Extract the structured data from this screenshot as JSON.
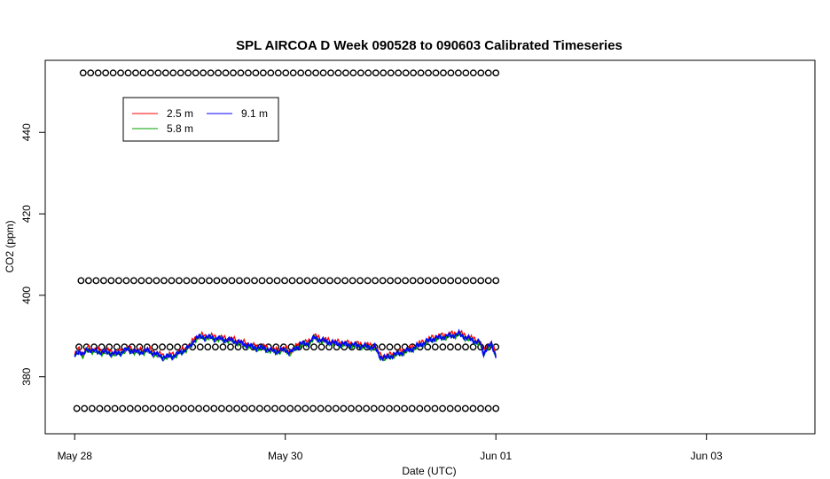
{
  "chart_data": {
    "type": "line",
    "title": "SPL AIRCOA D  Week 090528 to 090603  Calibrated Timeseries",
    "xlabel": "Date (UTC)",
    "ylabel": "CO2 (ppm)",
    "x_ticks": [
      {
        "day": 0,
        "label": "May 28"
      },
      {
        "day": 2,
        "label": "May 30"
      },
      {
        "day": 4,
        "label": "Jun 01"
      },
      {
        "day": 6,
        "label": "Jun 03"
      }
    ],
    "y_ticks": [
      380,
      400,
      420,
      440
    ],
    "xlim_days_from_May28": [
      -0.28,
      7.03
    ],
    "ylim": [
      366.0,
      457.7
    ],
    "grid": false,
    "legend_position": "top-left",
    "legend": [
      "2.5 m",
      "9.1 m",
      "5.8 m"
    ],
    "series": [
      {
        "name": "2.5 m",
        "color": "#ff0000",
        "offset": 0.35
      },
      {
        "name": "5.8 m",
        "color": "#00a000",
        "offset": -0.2
      },
      {
        "name": "9.1 m",
        "color": "#0000ff",
        "offset": 0.0
      }
    ],
    "co2_profile": [
      [
        0.0,
        385.0
      ],
      [
        0.04,
        386.5
      ],
      [
        0.08,
        385.2
      ],
      [
        0.12,
        386.8
      ],
      [
        0.2,
        386.2
      ],
      [
        0.3,
        386.0
      ],
      [
        0.4,
        385.6
      ],
      [
        0.5,
        386.7
      ],
      [
        0.6,
        386.0
      ],
      [
        0.7,
        386.4
      ],
      [
        0.78,
        385.4
      ],
      [
        0.85,
        384.8
      ],
      [
        0.95,
        385.2
      ],
      [
        1.0,
        385.9
      ],
      [
        1.05,
        386.7
      ],
      [
        1.1,
        387.5
      ],
      [
        1.14,
        389.3
      ],
      [
        1.2,
        389.8
      ],
      [
        1.3,
        389.6
      ],
      [
        1.4,
        389.2
      ],
      [
        1.5,
        388.9
      ],
      [
        1.6,
        388.1
      ],
      [
        1.7,
        387.2
      ],
      [
        1.8,
        387.0
      ],
      [
        1.9,
        386.2
      ],
      [
        2.0,
        386.6
      ],
      [
        2.05,
        385.9
      ],
      [
        2.1,
        387.0
      ],
      [
        2.15,
        388.2
      ],
      [
        2.2,
        388.0
      ],
      [
        2.28,
        389.6
      ],
      [
        2.35,
        388.9
      ],
      [
        2.45,
        388.3
      ],
      [
        2.55,
        388.0
      ],
      [
        2.65,
        387.8
      ],
      [
        2.75,
        387.5
      ],
      [
        2.85,
        387.2
      ],
      [
        2.9,
        385.0
      ],
      [
        2.95,
        384.6
      ],
      [
        3.0,
        385.1
      ],
      [
        3.1,
        385.9
      ],
      [
        3.2,
        386.8
      ],
      [
        3.3,
        388.1
      ],
      [
        3.4,
        389.3
      ],
      [
        3.5,
        389.8
      ],
      [
        3.6,
        390.2
      ],
      [
        3.65,
        390.5
      ],
      [
        3.72,
        389.6
      ],
      [
        3.8,
        388.8
      ],
      [
        3.85,
        388.3
      ],
      [
        3.88,
        385.7
      ],
      [
        3.92,
        387.3
      ],
      [
        3.96,
        387.8
      ],
      [
        4.0,
        385.2
      ]
    ],
    "reference_points": [
      {
        "value": 454.6,
        "start": 0.08,
        "end": 4.0,
        "n": 56
      },
      {
        "value": 403.6,
        "start": 0.06,
        "end": 4.0,
        "n": 56
      },
      {
        "value": 387.3,
        "start": 0.04,
        "end": 4.0,
        "n": 56
      },
      {
        "value": 372.2,
        "start": 0.02,
        "end": 4.0,
        "n": 56
      }
    ]
  }
}
